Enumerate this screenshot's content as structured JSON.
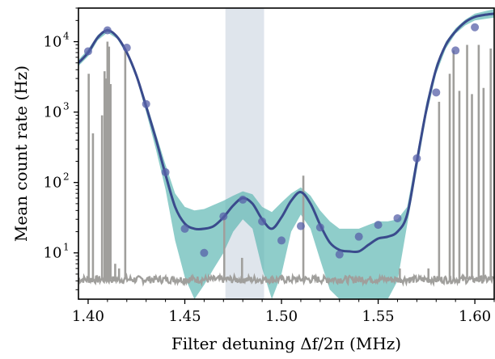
{
  "chart_data": {
    "type": "line",
    "xlabel": "Filter detuning Δf/2π (MHz)",
    "ylabel": "Mean count rate (Hz)",
    "xlim": [
      1.395,
      1.61
    ],
    "ylim": [
      2.2,
      30000
    ],
    "yscale": "log",
    "grid": false,
    "xticks": [
      1.4,
      1.45,
      1.5,
      1.55,
      1.6
    ],
    "xtick_labels": [
      "1.40",
      "1.45",
      "1.50",
      "1.55",
      "1.60"
    ],
    "yticks": [
      10,
      100,
      1000,
      10000
    ],
    "ytick_labels": [
      "10",
      "10",
      "10",
      "10"
    ],
    "ytick_exponents": [
      "1",
      "2",
      "3",
      "4"
    ],
    "shaded_regions": [
      {
        "x_start": 1.471,
        "x_end": 1.491,
        "color": "#dfe5ec"
      }
    ],
    "series": [
      {
        "kind": "confidence-band",
        "color": "#5fb8b3",
        "x": [
          1.395,
          1.4,
          1.405,
          1.41,
          1.415,
          1.42,
          1.425,
          1.43,
          1.435,
          1.44,
          1.445,
          1.45,
          1.455,
          1.46,
          1.465,
          1.47,
          1.475,
          1.48,
          1.485,
          1.49,
          1.495,
          1.5,
          1.505,
          1.51,
          1.515,
          1.52,
          1.525,
          1.53,
          1.535,
          1.54,
          1.545,
          1.55,
          1.555,
          1.56,
          1.565,
          1.57,
          1.575,
          1.58,
          1.585,
          1.59,
          1.595,
          1.6,
          1.605,
          1.61
        ],
        "lower": [
          4500,
          6200,
          10500,
          13500,
          11000,
          6500,
          3000,
          1000,
          300,
          80,
          15,
          4.5,
          2.2,
          3.5,
          6,
          10,
          20,
          30,
          22,
          6,
          2.2,
          5,
          20,
          35,
          22,
          8,
          3,
          2.2,
          2.2,
          2.2,
          2.2,
          2.2,
          2.2,
          4,
          25,
          150,
          900,
          3500,
          8000,
          13000,
          17000,
          20000,
          21000,
          22000
        ],
        "upper": [
          5500,
          7800,
          12500,
          15500,
          12500,
          7500,
          3600,
          1400,
          500,
          180,
          70,
          45,
          40,
          42,
          48,
          55,
          65,
          75,
          68,
          45,
          38,
          52,
          70,
          85,
          65,
          40,
          28,
          22,
          22,
          22,
          25,
          28,
          28,
          30,
          45,
          250,
          1400,
          4800,
          10000,
          15500,
          20500,
          25000,
          27000,
          29000
        ]
      },
      {
        "name": "",
        "kind": "background",
        "color": "#a09f9c",
        "baseline": 4.2,
        "spikes": [
          {
            "x": 1.4003,
            "y": 3500
          },
          {
            "x": 1.4025,
            "y": 500
          },
          {
            "x": 1.4072,
            "y": 900
          },
          {
            "x": 1.4085,
            "y": 3800
          },
          {
            "x": 1.4092,
            "y": 3000
          },
          {
            "x": 1.41,
            "y": 10000
          },
          {
            "x": 1.4108,
            "y": 8500
          },
          {
            "x": 1.4116,
            "y": 2500
          },
          {
            "x": 1.414,
            "y": 7
          },
          {
            "x": 1.416,
            "y": 6
          },
          {
            "x": 1.4192,
            "y": 8000
          },
          {
            "x": 1.4704,
            "y": 33
          },
          {
            "x": 1.4796,
            "y": 8.5
          },
          {
            "x": 1.5113,
            "y": 125
          },
          {
            "x": 1.5612,
            "y": 6
          },
          {
            "x": 1.576,
            "y": 6
          },
          {
            "x": 1.5815,
            "y": 1400
          },
          {
            "x": 1.587,
            "y": 3500
          },
          {
            "x": 1.589,
            "y": 7500
          },
          {
            "x": 1.592,
            "y": 2000
          },
          {
            "x": 1.596,
            "y": 9000
          },
          {
            "x": 1.5985,
            "y": 1800
          },
          {
            "x": 1.602,
            "y": 9000
          },
          {
            "x": 1.6045,
            "y": 2200
          },
          {
            "x": 1.6082,
            "y": 8000
          }
        ]
      },
      {
        "name": "",
        "kind": "fit-line",
        "color": "#3a4a8c",
        "x": [
          1.395,
          1.4,
          1.405,
          1.41,
          1.415,
          1.42,
          1.425,
          1.43,
          1.435,
          1.44,
          1.445,
          1.45,
          1.455,
          1.46,
          1.465,
          1.47,
          1.475,
          1.48,
          1.485,
          1.49,
          1.495,
          1.5,
          1.505,
          1.51,
          1.515,
          1.52,
          1.525,
          1.53,
          1.535,
          1.54,
          1.545,
          1.55,
          1.555,
          1.56,
          1.565,
          1.57,
          1.575,
          1.58,
          1.585,
          1.59,
          1.595,
          1.6,
          1.605,
          1.61
        ],
        "y": [
          5000,
          7000,
          11500,
          14500,
          11700,
          7000,
          3300,
          1200,
          420,
          130,
          45,
          26,
          22,
          22,
          24,
          32,
          47,
          60,
          50,
          30,
          22,
          32,
          55,
          73,
          50,
          25,
          14,
          11,
          10.5,
          10.5,
          13,
          16,
          17,
          20,
          35,
          200,
          1100,
          4100,
          9000,
          14000,
          19000,
          22500,
          24000,
          25000
        ]
      },
      {
        "name": "",
        "kind": "measured-points",
        "color": "#5760a8",
        "points": [
          {
            "x": 1.4,
            "y": 7300
          },
          {
            "x": 1.41,
            "y": 14500
          },
          {
            "x": 1.42,
            "y": 8200
          },
          {
            "x": 1.43,
            "y": 1300
          },
          {
            "x": 1.44,
            "y": 140
          },
          {
            "x": 1.45,
            "y": 22
          },
          {
            "x": 1.46,
            "y": 10
          },
          {
            "x": 1.47,
            "y": 33
          },
          {
            "x": 1.48,
            "y": 57
          },
          {
            "x": 1.49,
            "y": 28
          },
          {
            "x": 1.5,
            "y": 15
          },
          {
            "x": 1.51,
            "y": 24
          },
          {
            "x": 1.52,
            "y": 23
          },
          {
            "x": 1.53,
            "y": 9.5
          },
          {
            "x": 1.54,
            "y": 17
          },
          {
            "x": 1.55,
            "y": 25
          },
          {
            "x": 1.56,
            "y": 31
          },
          {
            "x": 1.57,
            "y": 220
          },
          {
            "x": 1.58,
            "y": 1900
          },
          {
            "x": 1.59,
            "y": 7500
          },
          {
            "x": 1.6,
            "y": 16000
          }
        ]
      }
    ]
  }
}
